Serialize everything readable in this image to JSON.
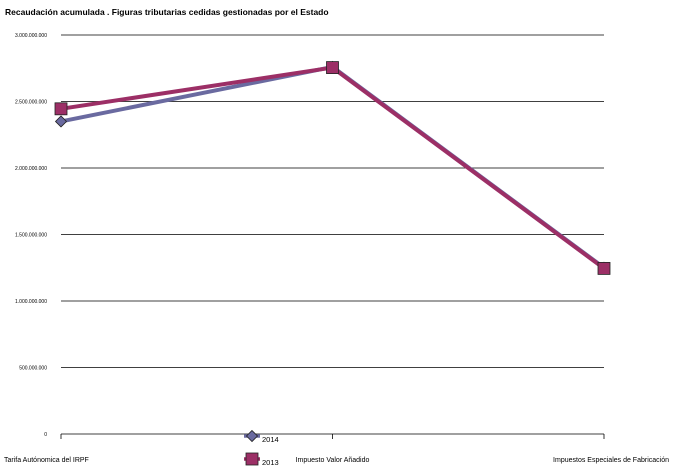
{
  "chart_data": {
    "type": "line",
    "title": "Recaudación acumulada . Figuras tributarias cedidas gestionadas por el Estado",
    "categories": [
      "Tarifa Autónomica del IRPF",
      "Impuesto Valor Añadido",
      "Impuestos Especiales de Fabricación"
    ],
    "series": [
      {
        "name": "2014",
        "values": [
          2350000000,
          2760000000,
          1250000000
        ],
        "color": "#6a6aa0",
        "marker": "diamond"
      },
      {
        "name": "2013",
        "values": [
          2445000000,
          2755000000,
          1245000000
        ],
        "color": "#9c2f66",
        "marker": "square"
      }
    ],
    "ylim": [
      0,
      3000000000
    ],
    "yticks": [
      0,
      500000000,
      1000000000,
      1500000000,
      2000000000,
      2500000000,
      3000000000
    ],
    "ytick_labels": [
      "0",
      "500.000.000",
      "1.000.000.000",
      "1.500.000.000",
      "2.000.000.000",
      "2.500.000.000",
      "3.000.000.000"
    ],
    "grid": true,
    "legend": "bottom-center",
    "xlabel": "",
    "ylabel": ""
  }
}
